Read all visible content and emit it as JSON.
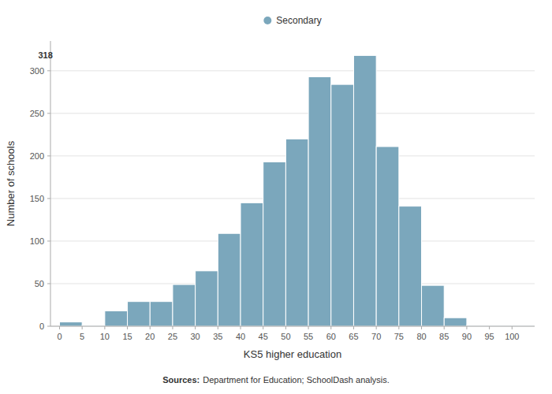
{
  "chart_data": {
    "type": "histogram",
    "bins": [
      0,
      5,
      10,
      15,
      20,
      25,
      30,
      35,
      40,
      45,
      50,
      55,
      60,
      65,
      70,
      75,
      80,
      85,
      90,
      95,
      100,
      105
    ],
    "series": [
      {
        "name": "Secondary",
        "color": "#7ba7bc",
        "values": [
          5,
          1,
          18,
          29,
          29,
          49,
          65,
          109,
          145,
          193,
          220,
          293,
          284,
          318,
          211,
          141,
          48,
          10,
          1,
          1,
          1
        ]
      }
    ],
    "x_label": "KS5 higher education",
    "y_label": "Number of schools",
    "xlim": [
      -2,
      105
    ],
    "ylim": [
      0,
      335
    ],
    "xticks": [
      0,
      5,
      10,
      15,
      20,
      25,
      30,
      35,
      40,
      45,
      50,
      55,
      60,
      65,
      70,
      75,
      80,
      85,
      90,
      95,
      100
    ],
    "yticks": [
      0,
      50,
      100,
      150,
      200,
      250,
      300
    ],
    "grid": true,
    "legend": "top",
    "annotations": [
      {
        "text": "318",
        "x": -1.5,
        "y": 318
      }
    ],
    "source": [
      "Sources:",
      "Department for Education; SchoolDash analysis."
    ]
  }
}
